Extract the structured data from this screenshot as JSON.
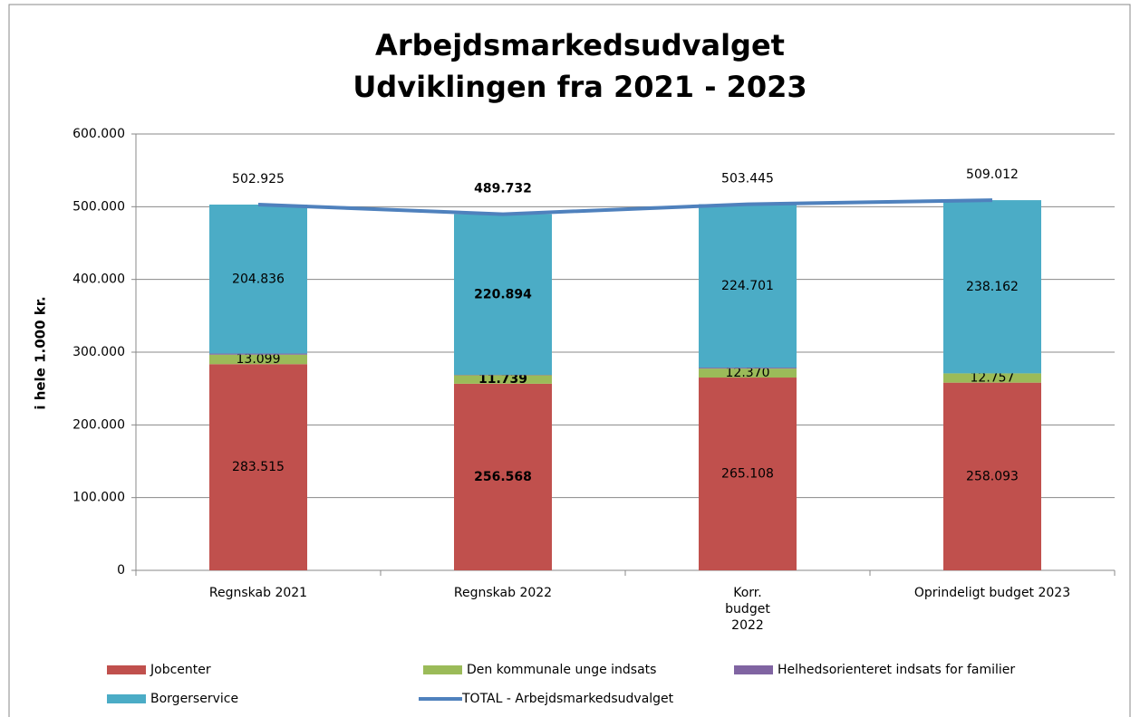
{
  "chart_data": {
    "type": "bar",
    "stacked": true,
    "title": [
      "Arbejdsmarkedsudvalget",
      "Udviklingen fra 2021 - 2023"
    ],
    "y_label": "i hele 1.000 kr.",
    "categories": [
      "Regnskab 2021",
      "Regnskab 2022",
      "Korr. budget 2022",
      "Oprindeligt budget 2023"
    ],
    "series": [
      {
        "name": "Jobcenter",
        "color": "#c0504d",
        "values": [
          283515,
          256568,
          265108,
          258093
        ],
        "value_labels": [
          "283.515",
          "256.568",
          "265.108",
          "258.093"
        ]
      },
      {
        "name": "Den kommunale unge indsats",
        "color": "#9bbb59",
        "values": [
          13099,
          11739,
          12370,
          12757
        ],
        "value_labels": [
          "13.099",
          "11.739",
          "12.370",
          "12.757"
        ]
      },
      {
        "name": "Helhedsorienteret indsats for familier",
        "color": "#8064a2",
        "values": [
          1475,
          531,
          1266,
          0
        ]
      },
      {
        "name": "Borgerservice",
        "color": "#4bacc6",
        "values": [
          204836,
          220894,
          224701,
          238162
        ],
        "value_labels": [
          "204.836",
          "220.894",
          "224.701",
          "238.162"
        ]
      },
      {
        "name": "TOTAL - Arbejdsmarkedsudvalget",
        "type": "line",
        "color": "#4f81bd",
        "values": [
          502925,
          489732,
          503445,
          509012
        ],
        "value_labels": [
          "502.925",
          "489.732",
          "503.445",
          "509.012"
        ]
      }
    ],
    "ylim": [
      0,
      600000
    ],
    "yticks": [
      0,
      {
        "value": 100000,
        "label": "100.000"
      },
      {
        "value": 200000,
        "label": "200.000"
      },
      {
        "value": 300000,
        "label": "300.000"
      },
      {
        "value": 400000,
        "label": "400.000"
      },
      {
        "value": 500000,
        "label": "500.000"
      },
      {
        "value": 600000,
        "label": "600.000"
      }
    ],
    "grid": true
  }
}
